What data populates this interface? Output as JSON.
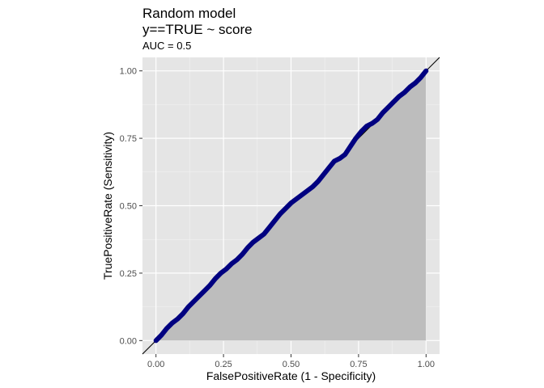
{
  "chart_data": {
    "type": "line",
    "title": "Random model",
    "title_line2": "y==TRUE ~ score",
    "subtitle": "AUC = 0.5",
    "xlabel": "FalsePositiveRate (1 - Specificity)",
    "ylabel": "TruePositiveRate (Sensitivity)",
    "xlim": [
      0,
      1
    ],
    "ylim": [
      0,
      1
    ],
    "x_ticks": [
      0,
      0.25,
      0.5,
      0.75,
      1
    ],
    "x_tick_labels": [
      "0.00",
      "0.25",
      "0.50",
      "0.75",
      "1.00"
    ],
    "y_ticks": [
      0,
      0.25,
      0.5,
      0.75,
      1
    ],
    "y_tick_labels": [
      "0.00",
      "0.25",
      "0.50",
      "0.75",
      "1.00"
    ],
    "grid": true,
    "panel_background": "#e5e5e5",
    "series": [
      {
        "fpr": [
          0,
          0.02,
          0.04,
          0.06,
          0.08,
          0.1,
          0.12,
          0.14,
          0.16,
          0.18,
          0.2,
          0.22,
          0.24,
          0.26,
          0.28,
          0.3,
          0.32,
          0.34,
          0.36,
          0.38,
          0.4,
          0.42,
          0.44,
          0.46,
          0.48,
          0.5,
          0.52,
          0.54,
          0.56,
          0.58,
          0.6,
          0.62,
          0.64,
          0.66,
          0.68,
          0.7,
          0.72,
          0.74,
          0.76,
          0.78,
          0.8,
          0.82,
          0.84,
          0.86,
          0.88,
          0.9,
          0.92,
          0.94,
          0.96,
          0.98,
          1.0
        ],
        "tpr": [
          0,
          0.02,
          0.045,
          0.065,
          0.08,
          0.1,
          0.125,
          0.145,
          0.165,
          0.185,
          0.205,
          0.23,
          0.25,
          0.265,
          0.285,
          0.3,
          0.32,
          0.345,
          0.365,
          0.38,
          0.395,
          0.42,
          0.445,
          0.47,
          0.49,
          0.51,
          0.525,
          0.54,
          0.555,
          0.57,
          0.59,
          0.615,
          0.64,
          0.665,
          0.675,
          0.69,
          0.72,
          0.75,
          0.775,
          0.795,
          0.805,
          0.82,
          0.845,
          0.865,
          0.885,
          0.905,
          0.92,
          0.94,
          0.955,
          0.975,
          1.0
        ],
        "color": "#000080"
      }
    ],
    "reference_line": {
      "slope": 1,
      "intercept": 0,
      "color": "#000000"
    },
    "fill": {
      "under": "roc_curve",
      "color": "#bdbdbd"
    }
  }
}
